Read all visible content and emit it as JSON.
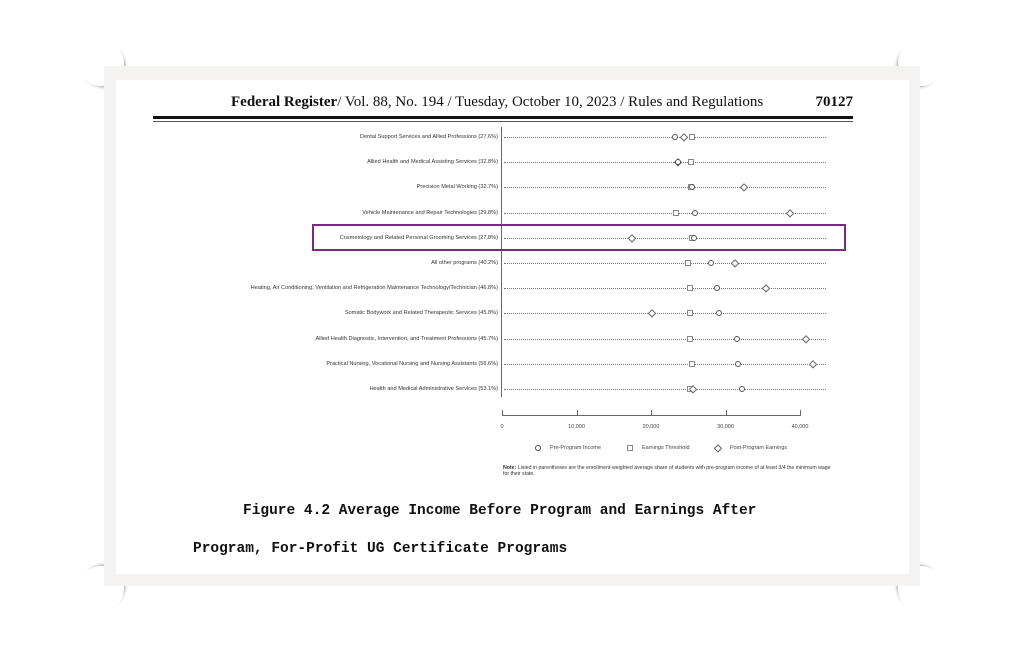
{
  "header": {
    "publication": "Federal Register",
    "details": "/ Vol. 88, No. 194 / Tuesday, October 10, 2023 / Rules and Regulations",
    "page_number": "70127"
  },
  "caption": {
    "line1": "Figure 4.2 Average Income Before Program and Earnings After",
    "line2": "Program, For-Profit UG Certificate Programs"
  },
  "highlight": {
    "row_index": 4,
    "color": "#7b2a84"
  },
  "legend": {
    "items": [
      {
        "label": "Pre-Program Income",
        "marker": "circle"
      },
      {
        "label": "Earnings Threshold",
        "marker": "square"
      },
      {
        "label": "Post-Program Earnings",
        "marker": "diamond"
      }
    ]
  },
  "note": {
    "prefix": "Note:",
    "text": " Listed in parentheses are the enrollment-weighted average share of students with pre-program income of at least 3/4 the minimum wage for their state."
  },
  "chart_data": {
    "type": "scatter",
    "title": "Figure 4.2 Average Income Before Program and Earnings After Program, For-Profit UG Certificate Programs",
    "xlabel": "",
    "ylabel": "",
    "xlim": [
      0,
      40000
    ],
    "x_ticks": [
      "0",
      "10,000",
      "20,000",
      "30,000",
      "40,000"
    ],
    "x_tick_values": [
      0,
      10000,
      20000,
      30000,
      40000
    ],
    "grid": "dotted row guide lines",
    "legend_position": "bottom",
    "categories": [
      "Dental Support Services and Allied Professions (27.6%)",
      "Allied Health and Medical Assisting Services (32.8%)",
      "Precision Metal Working (32.7%)",
      "Vehicle Maintenance and Repair Technologies (29.8%)",
      "Cosmetology and Related Personal Grooming Services (27.8%)",
      "All other programs (40.2%)",
      "Heating, Air Conditioning, Ventilation and Refrigeration Maintenance Technology/Technician (46.8%)",
      "Somatic Bodywork and Related Therapeutic Services (45.8%)",
      "Allied Health Diagnostic, Intervention, and Treatment Professions (45.7%)",
      "Practical Nursing, Vocational Nursing and Nursing Assistants (56.6%)",
      "Health and Medical Administrative Services (53.1%)"
    ],
    "series": [
      {
        "name": "Pre-Program Income",
        "marker": "circle",
        "values": [
          23200,
          23600,
          25500,
          25900,
          25800,
          28000,
          28900,
          29100,
          31600,
          31700,
          32200
        ]
      },
      {
        "name": "Earnings Threshold",
        "marker": "square",
        "values": [
          25500,
          25400,
          25400,
          23400,
          25500,
          25000,
          25200,
          25200,
          25300,
          25500,
          25300
        ]
      },
      {
        "name": "Post-Program Earnings",
        "marker": "diamond",
        "values": [
          24400,
          23600,
          32500,
          38700,
          17400,
          31300,
          35400,
          20100,
          40800,
          41700,
          25600
        ]
      }
    ],
    "annotations": [
      "Purple box highlights Cosmetology and Related Personal Grooming Services row"
    ]
  }
}
